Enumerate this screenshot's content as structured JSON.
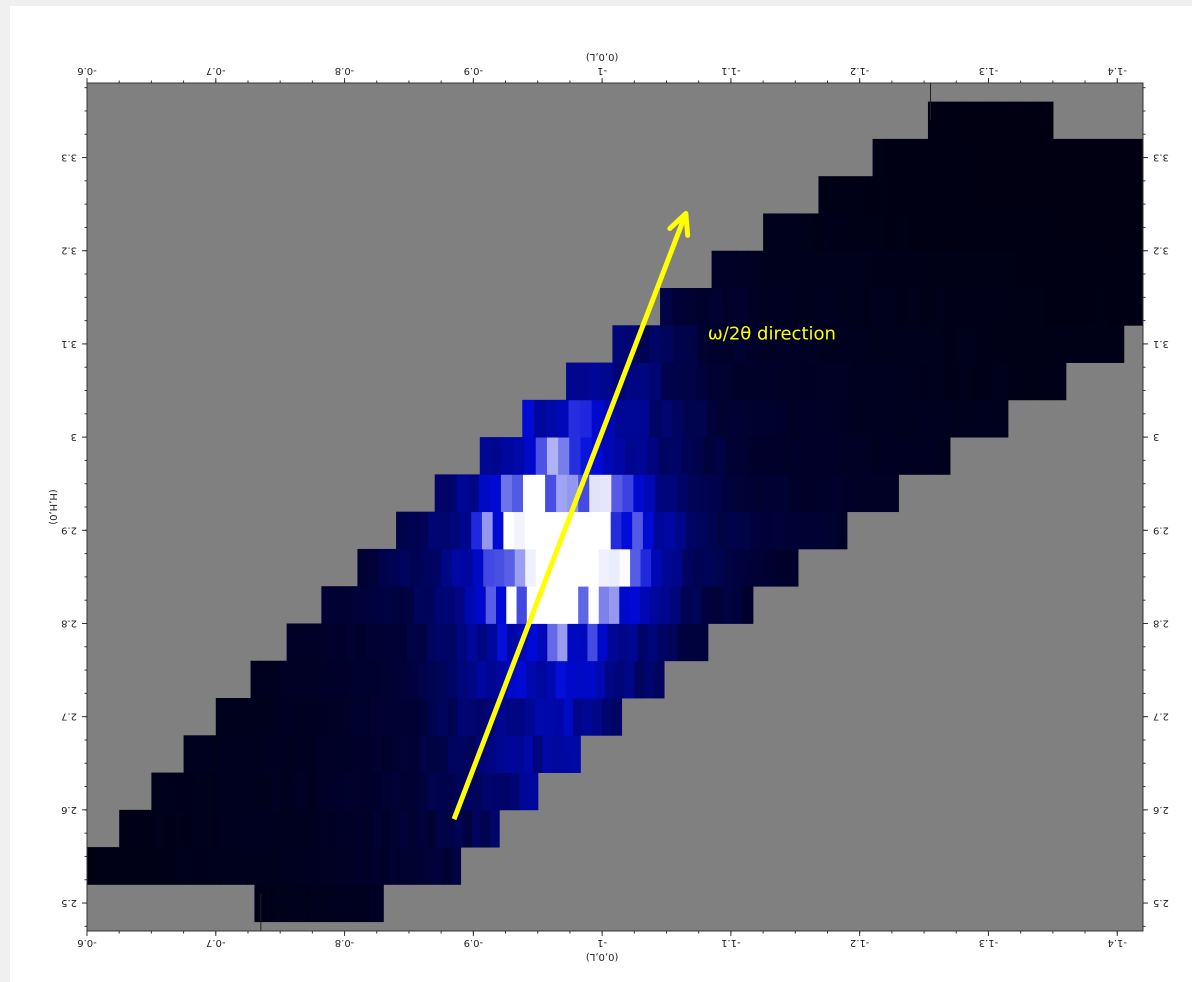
{
  "chart_data": {
    "type": "heatmap",
    "title": "",
    "xlabel": "(0,0,L)",
    "ylabel": "(H,H,0)",
    "x_range": [
      -0.6,
      -1.42
    ],
    "y_range": [
      2.47,
      3.38
    ],
    "x_axis_direction": "L decreases to the right",
    "text_mirrored": true,
    "x_ticks": [
      {
        "value": -0.6,
        "label": "-0.6"
      },
      {
        "value": -0.7,
        "label": "-0.7"
      },
      {
        "value": -0.8,
        "label": "-0.8"
      },
      {
        "value": -0.9,
        "label": "-0.9"
      },
      {
        "value": -1.0,
        "label": "-1"
      },
      {
        "value": -1.1,
        "label": "-1.1"
      },
      {
        "value": -1.2,
        "label": "-1.2"
      },
      {
        "value": -1.3,
        "label": "-1.3"
      },
      {
        "value": -1.4,
        "label": "-1.4"
      }
    ],
    "y_ticks": [
      {
        "value": 2.5,
        "label": "2.5"
      },
      {
        "value": 2.6,
        "label": "2.6"
      },
      {
        "value": 2.7,
        "label": "2.7"
      },
      {
        "value": 2.8,
        "label": "2.8"
      },
      {
        "value": 2.9,
        "label": "2.9"
      },
      {
        "value": 3.0,
        "label": "3"
      },
      {
        "value": 3.1,
        "label": "3.1"
      },
      {
        "value": 3.2,
        "label": "3.2"
      },
      {
        "value": 3.3,
        "label": "3.3"
      }
    ],
    "colors": {
      "background": "#808080",
      "low_intensity": "#000010",
      "mid_intensity": "#0000c8",
      "peak_intensity": "#ffffff",
      "annotation": "#ffff00"
    },
    "rows": [
      {
        "h": [
          2.48,
          2.52
        ],
        "l_start": -0.73,
        "l_end": -0.83,
        "peak": 0.18
      },
      {
        "h": [
          2.52,
          2.56
        ],
        "l_start": -0.6,
        "l_end": -0.89,
        "peak": 0.28
      },
      {
        "h": [
          2.56,
          2.6
        ],
        "l_start": -0.625,
        "l_end": -0.92,
        "peak": 0.33
      },
      {
        "h": [
          2.6,
          2.64
        ],
        "l_start": -0.65,
        "l_end": -0.95,
        "peak": 0.38
      },
      {
        "h": [
          2.64,
          2.68
        ],
        "l_start": -0.675,
        "l_end": -0.983,
        "peak": 0.42
      },
      {
        "h": [
          2.68,
          2.72
        ],
        "l_start": -0.7,
        "l_end": -1.015,
        "peak": 0.46
      },
      {
        "h": [
          2.72,
          2.76
        ],
        "l_start": -0.727,
        "l_end": -1.048,
        "peak": 0.52
      },
      {
        "h": [
          2.76,
          2.8
        ],
        "l_start": -0.755,
        "l_end": -1.082,
        "peak": 0.62
      },
      {
        "h": [
          2.8,
          2.84
        ],
        "l_start": -0.782,
        "l_end": -1.117,
        "peak": 0.85
      },
      {
        "h": [
          2.84,
          2.88
        ],
        "l_start": -0.81,
        "l_end": -1.152,
        "peak": 1.0
      },
      {
        "h": [
          2.88,
          2.92
        ],
        "l_start": -0.84,
        "l_end": -1.19,
        "peak": 1.0
      },
      {
        "h": [
          2.92,
          2.96
        ],
        "l_start": -0.87,
        "l_end": -1.23,
        "peak": 0.8
      },
      {
        "h": [
          2.96,
          3.0
        ],
        "l_start": -0.905,
        "l_end": -1.27,
        "peak": 0.65
      },
      {
        "h": [
          3.0,
          3.04
        ],
        "l_start": -0.938,
        "l_end": -1.315,
        "peak": 0.55
      },
      {
        "h": [
          3.04,
          3.08
        ],
        "l_start": -0.972,
        "l_end": -1.36,
        "peak": 0.45
      },
      {
        "h": [
          3.08,
          3.12
        ],
        "l_start": -1.008,
        "l_end": -1.405,
        "peak": 0.38
      },
      {
        "h": [
          3.12,
          3.16
        ],
        "l_start": -1.045,
        "l_end": -1.45,
        "peak": 0.3
      },
      {
        "h": [
          3.16,
          3.2
        ],
        "l_start": -1.085,
        "l_end": -1.485,
        "peak": 0.22
      },
      {
        "h": [
          3.2,
          3.24
        ],
        "l_start": -1.125,
        "l_end": -1.52,
        "peak": 0.16
      },
      {
        "h": [
          3.24,
          3.28
        ],
        "l_start": -1.168,
        "l_end": -1.555,
        "peak": 0.12
      },
      {
        "h": [
          3.28,
          3.32
        ],
        "l_start": -1.21,
        "l_end": -1.6,
        "peak": 0.1
      },
      {
        "h": [
          3.32,
          3.36
        ],
        "l_start": -1.253,
        "l_end": -1.35,
        "peak": 0.08
      }
    ],
    "peak_position": {
      "l": -0.967,
      "h": 2.88
    },
    "markers": [
      {
        "l": -0.735,
        "h": [
          2.47,
          2.51
        ]
      },
      {
        "l": -1.255,
        "h": [
          3.34,
          3.38
        ]
      }
    ],
    "annotation": {
      "text": "ω/2θ direction",
      "arrow_start": {
        "l": -0.885,
        "h": 2.59
      },
      "arrow_end": {
        "l": -1.065,
        "h": 3.24
      },
      "text_position": {
        "l": -1.082,
        "h": 3.105
      }
    }
  }
}
